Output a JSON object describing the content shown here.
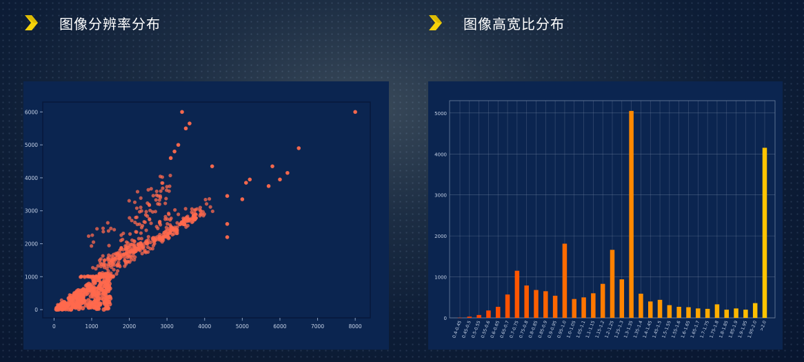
{
  "sections": {
    "left_title": "图像分辨率分布",
    "right_title": "图像高宽比分布"
  },
  "colors": {
    "accent_chevron": "#f5d20a",
    "scatter_point": "#ff6a4d",
    "bar_start": "#ff3d00",
    "bar_end": "#ffc400",
    "panel_bg": "#0b2550"
  },
  "icons": [
    "chevron-right-icon"
  ],
  "chart_data": [
    {
      "type": "scatter",
      "title": "",
      "xlabel": "",
      "ylabel": "",
      "xlim": [
        -300,
        8400
      ],
      "ylim": [
        -250,
        6300
      ],
      "xticks": [
        "0",
        "1000",
        "2000",
        "3000",
        "4000",
        "5000",
        "6000",
        "7000",
        "8000"
      ],
      "yticks": [
        "0",
        "1000",
        "2000",
        "3000",
        "4000",
        "5000",
        "6000"
      ],
      "grid": false,
      "outliers": [
        {
          "x": 8000,
          "y": 6000
        },
        {
          "x": 6500,
          "y": 4900
        },
        {
          "x": 6200,
          "y": 4150
        },
        {
          "x": 6000,
          "y": 3950
        },
        {
          "x": 5800,
          "y": 4350
        },
        {
          "x": 5700,
          "y": 3750
        },
        {
          "x": 5200,
          "y": 3950
        },
        {
          "x": 5100,
          "y": 3850
        },
        {
          "x": 5000,
          "y": 3350
        },
        {
          "x": 4600,
          "y": 3450
        },
        {
          "x": 4600,
          "y": 2200
        },
        {
          "x": 4600,
          "y": 2600
        },
        {
          "x": 4200,
          "y": 4350
        },
        {
          "x": 3600,
          "y": 5650
        },
        {
          "x": 3500,
          "y": 5500
        },
        {
          "x": 3400,
          "y": 6000
        },
        {
          "x": 3300,
          "y": 5000
        },
        {
          "x": 3200,
          "y": 4800
        },
        {
          "x": 3100,
          "y": 4600
        }
      ],
      "clusters": [
        {
          "from": [
            100,
            50
          ],
          "to": [
            4000,
            3050
          ],
          "count": 120,
          "spread": [
            160,
            90
          ]
        },
        {
          "from": [
            1300,
            1300
          ],
          "to": [
            3900,
            2900
          ],
          "count": 110,
          "spread": [
            90,
            90
          ]
        },
        {
          "from": [
            1500,
            1500
          ],
          "to": [
            3300,
            2400
          ],
          "count": 70,
          "spread": [
            70,
            60
          ]
        },
        {
          "from": [
            2500,
            2300
          ],
          "to": [
            4100,
            3150
          ],
          "count": 60,
          "spread": [
            250,
            250
          ]
        },
        {
          "from": [
            1800,
            2000
          ],
          "to": [
            3100,
            3900
          ],
          "count": 45,
          "spread": [
            260,
            260
          ]
        },
        {
          "from": [
            1100,
            1300
          ],
          "to": [
            2200,
            2100
          ],
          "count": 50,
          "spread": [
            120,
            120
          ]
        },
        {
          "from": [
            700,
            1000
          ],
          "to": [
            1600,
            1000
          ],
          "count": 40,
          "spread": [
            20,
            20
          ]
        },
        {
          "from": [
            1000,
            2000
          ],
          "to": [
            3100,
            4000
          ],
          "count": 30,
          "spread": [
            300,
            300
          ]
        }
      ],
      "dense_core": {
        "x_range": [
          50,
          1500
        ],
        "y_range": [
          0,
          1100
        ],
        "count": 300
      }
    },
    {
      "type": "bar",
      "title": "",
      "xlabel": "",
      "ylabel": "",
      "ylim": [
        0,
        5300
      ],
      "yticks": [
        "0",
        "1000",
        "2000",
        "3000",
        "4000",
        "5000"
      ],
      "grid": true,
      "categories": [
        "0.4-0.45",
        "0.45-0.5",
        "0.5-0.55",
        "0.55-0.6",
        "0.6-0.65",
        "0.65-0.7",
        "0.7-0.75",
        "0.75-0.8",
        "0.8-0.85",
        "0.85-0.9",
        "0.9-0.95",
        "0.95-1.0",
        "1.0-1.05",
        "1.05-1.1",
        "1.1-1.15",
        "1.15-1.2",
        "1.2-1.25",
        "1.25-1.3",
        "1.3-1.35",
        "1.35-1.4",
        "1.4-1.45",
        "1.45-1.5",
        "1.5-1.55",
        "1.55-1.6",
        "1.6-1.65",
        "1.65-1.7",
        "1.7-1.75",
        "1.75-1.8",
        "1.8-1.85",
        "1.85-1.9",
        "1.9-1.95",
        "1.95-2.0",
        ">2.0"
      ],
      "values": [
        5,
        30,
        70,
        180,
        270,
        570,
        1150,
        790,
        680,
        650,
        540,
        1810,
        460,
        500,
        600,
        830,
        1660,
        940,
        5050,
        590,
        400,
        440,
        310,
        270,
        260,
        230,
        220,
        330,
        200,
        230,
        200,
        360,
        4150
      ]
    }
  ]
}
